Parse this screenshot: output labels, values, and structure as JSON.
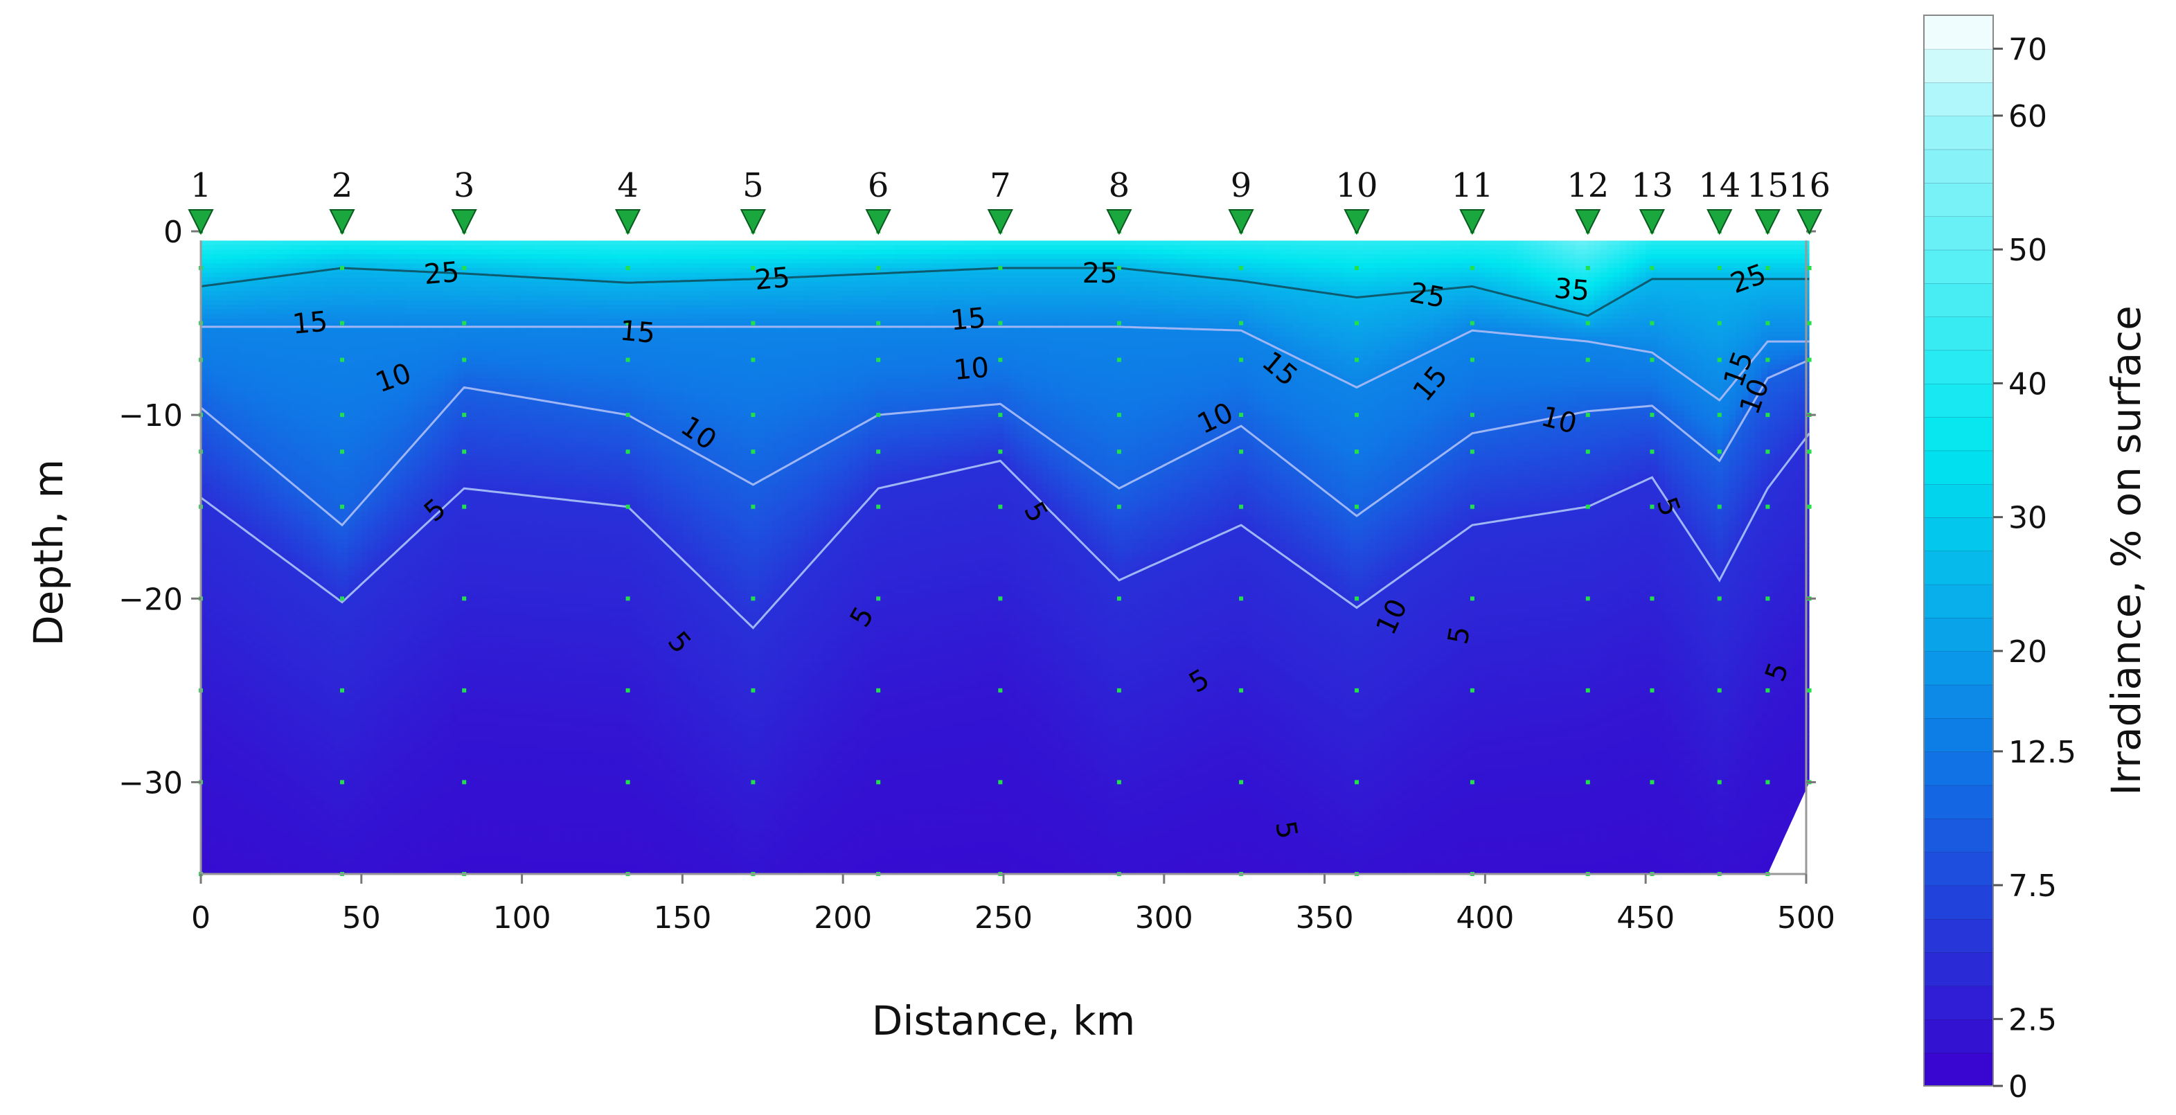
{
  "chart_data": {
    "type": "heatmap",
    "subtype": "filled-contour section",
    "xlabel": "Distance, km",
    "ylabel": "Depth, m",
    "colorbar_label": "Irradiance, % on surface",
    "xlim": [
      0,
      500
    ],
    "ylim": [
      -35,
      0
    ],
    "x_ticks": [
      0,
      50,
      100,
      150,
      200,
      250,
      300,
      350,
      400,
      450,
      500
    ],
    "y_ticks": [
      0,
      -10,
      -20,
      -30
    ],
    "colorbar_levels": [
      0,
      1.25,
      2.5,
      3.75,
      5,
      6.25,
      7.5,
      8.75,
      10,
      11.25,
      12.5,
      15,
      17.5,
      20,
      22.5,
      25,
      27.5,
      30,
      32.5,
      35,
      37.5,
      40,
      42.5,
      45,
      47.5,
      50,
      52.5,
      55,
      57.5,
      60,
      65,
      70,
      75
    ],
    "colorbar_tick_labels": [
      "0",
      "2.5",
      "7.5",
      "12.5",
      "20",
      "30",
      "40",
      "50",
      "60",
      "70"
    ],
    "colorbar_tick_values": [
      0,
      2.5,
      7.5,
      12.5,
      20,
      30,
      40,
      50,
      60,
      70
    ],
    "colormap_low": "#3a00cf",
    "colormap_mid": "#0f78e6",
    "colormap_high": "#ffffff",
    "stations": [
      {
        "label": "1",
        "x": 0
      },
      {
        "label": "2",
        "x": 44
      },
      {
        "label": "3",
        "x": 82
      },
      {
        "label": "4",
        "x": 133
      },
      {
        "label": "5",
        "x": 172
      },
      {
        "label": "6",
        "x": 211
      },
      {
        "label": "7",
        "x": 249
      },
      {
        "label": "8",
        "x": 286
      },
      {
        "label": "9",
        "x": 324
      },
      {
        "label": "10",
        "x": 360
      },
      {
        "label": "11",
        "x": 396
      },
      {
        "label": "12",
        "x": 432
      },
      {
        "label": "13",
        "x": 452
      },
      {
        "label": "14",
        "x": 473
      },
      {
        "label": "15",
        "x": 488
      },
      {
        "label": "16",
        "x": 501
      }
    ],
    "sample_depths": [
      0,
      -2,
      -5,
      -7,
      -10,
      -12,
      -15,
      -20,
      -25,
      -30,
      -35
    ],
    "station_max_depth": [
      -35,
      -35,
      -35,
      -35,
      -35,
      -35,
      -35,
      -35,
      -35,
      -35,
      -35,
      -35,
      -35,
      -35,
      -35,
      -30
    ],
    "isolines": [
      {
        "level": 25,
        "depth": [
          -3,
          -2,
          -2.3,
          -2.8,
          -2.6,
          -2.3,
          -2,
          -2,
          -2.7,
          -3.6,
          -3,
          -4.6,
          -2.6,
          -2.6,
          -2.6,
          -2.6
        ]
      },
      {
        "level": 15,
        "depth": [
          -5.2,
          -5.2,
          -5.2,
          -5.2,
          -5.2,
          -5.2,
          -5.2,
          -5.2,
          -5.4,
          -8.5,
          -5.4,
          -6,
          -6.6,
          -9.2,
          -6,
          -6
        ]
      },
      {
        "level": 10,
        "depth": [
          -9.6,
          -16,
          -8.5,
          -10,
          -13.8,
          -10,
          -9.4,
          -14,
          -10.6,
          -15.5,
          -11,
          -9.8,
          -9.5,
          -12.5,
          -8,
          -7
        ]
      },
      {
        "level": 5,
        "depth": [
          -14.5,
          -20.2,
          -14,
          -15,
          -21.6,
          -14,
          -12.5,
          -19,
          -16,
          -20.5,
          -16,
          -15,
          -13.4,
          -19,
          -14,
          -11
        ]
      }
    ],
    "contour_labels": [
      {
        "text": "25",
        "x": 75,
        "depth": -2.3,
        "angle": -5
      },
      {
        "text": "25",
        "x": 178,
        "depth": -2.6,
        "angle": -5
      },
      {
        "text": "25",
        "x": 280,
        "depth": -2.3,
        "angle": 0
      },
      {
        "text": "25",
        "x": 382,
        "depth": -3.5,
        "angle": 10
      },
      {
        "text": "35",
        "x": 427,
        "depth": -3.2,
        "angle": 5
      },
      {
        "text": "25",
        "x": 482,
        "depth": -2.6,
        "angle": -20
      },
      {
        "text": "15",
        "x": 34,
        "depth": -5,
        "angle": -5
      },
      {
        "text": "15",
        "x": 136,
        "depth": -5.5,
        "angle": 5
      },
      {
        "text": "15",
        "x": 239,
        "depth": -4.8,
        "angle": -5
      },
      {
        "text": "15",
        "x": 336,
        "depth": -7.5,
        "angle": 40
      },
      {
        "text": "15",
        "x": 383,
        "depth": -8.3,
        "angle": -50
      },
      {
        "text": "15",
        "x": 479,
        "depth": -7.5,
        "angle": -70
      },
      {
        "text": "10",
        "x": 60,
        "depth": -8,
        "angle": -20
      },
      {
        "text": "10",
        "x": 155,
        "depth": -11,
        "angle": 35
      },
      {
        "text": "10",
        "x": 240,
        "depth": -7.5,
        "angle": -5
      },
      {
        "text": "10",
        "x": 316,
        "depth": -10.2,
        "angle": -25
      },
      {
        "text": "10",
        "x": 423,
        "depth": -10.3,
        "angle": 15
      },
      {
        "text": "10",
        "x": 484,
        "depth": -9,
        "angle": -70
      },
      {
        "text": "5",
        "x": 73,
        "depth": -15.2,
        "angle": -40
      },
      {
        "text": "5",
        "x": 149,
        "depth": -22.4,
        "angle": 50
      },
      {
        "text": "5",
        "x": 206,
        "depth": -21,
        "angle": -60
      },
      {
        "text": "5",
        "x": 260,
        "depth": -15.3,
        "angle": 60
      },
      {
        "text": "5",
        "x": 311,
        "depth": -24.5,
        "angle": -30
      },
      {
        "text": "5",
        "x": 338,
        "depth": -32.6,
        "angle": 80
      },
      {
        "text": "10",
        "x": 371,
        "depth": -21,
        "angle": -65
      },
      {
        "text": "5",
        "x": 392,
        "depth": -22,
        "angle": -80
      },
      {
        "text": "5",
        "x": 457,
        "depth": -15,
        "angle": 70
      },
      {
        "text": "5",
        "x": 491,
        "depth": -24,
        "angle": -70
      }
    ]
  }
}
